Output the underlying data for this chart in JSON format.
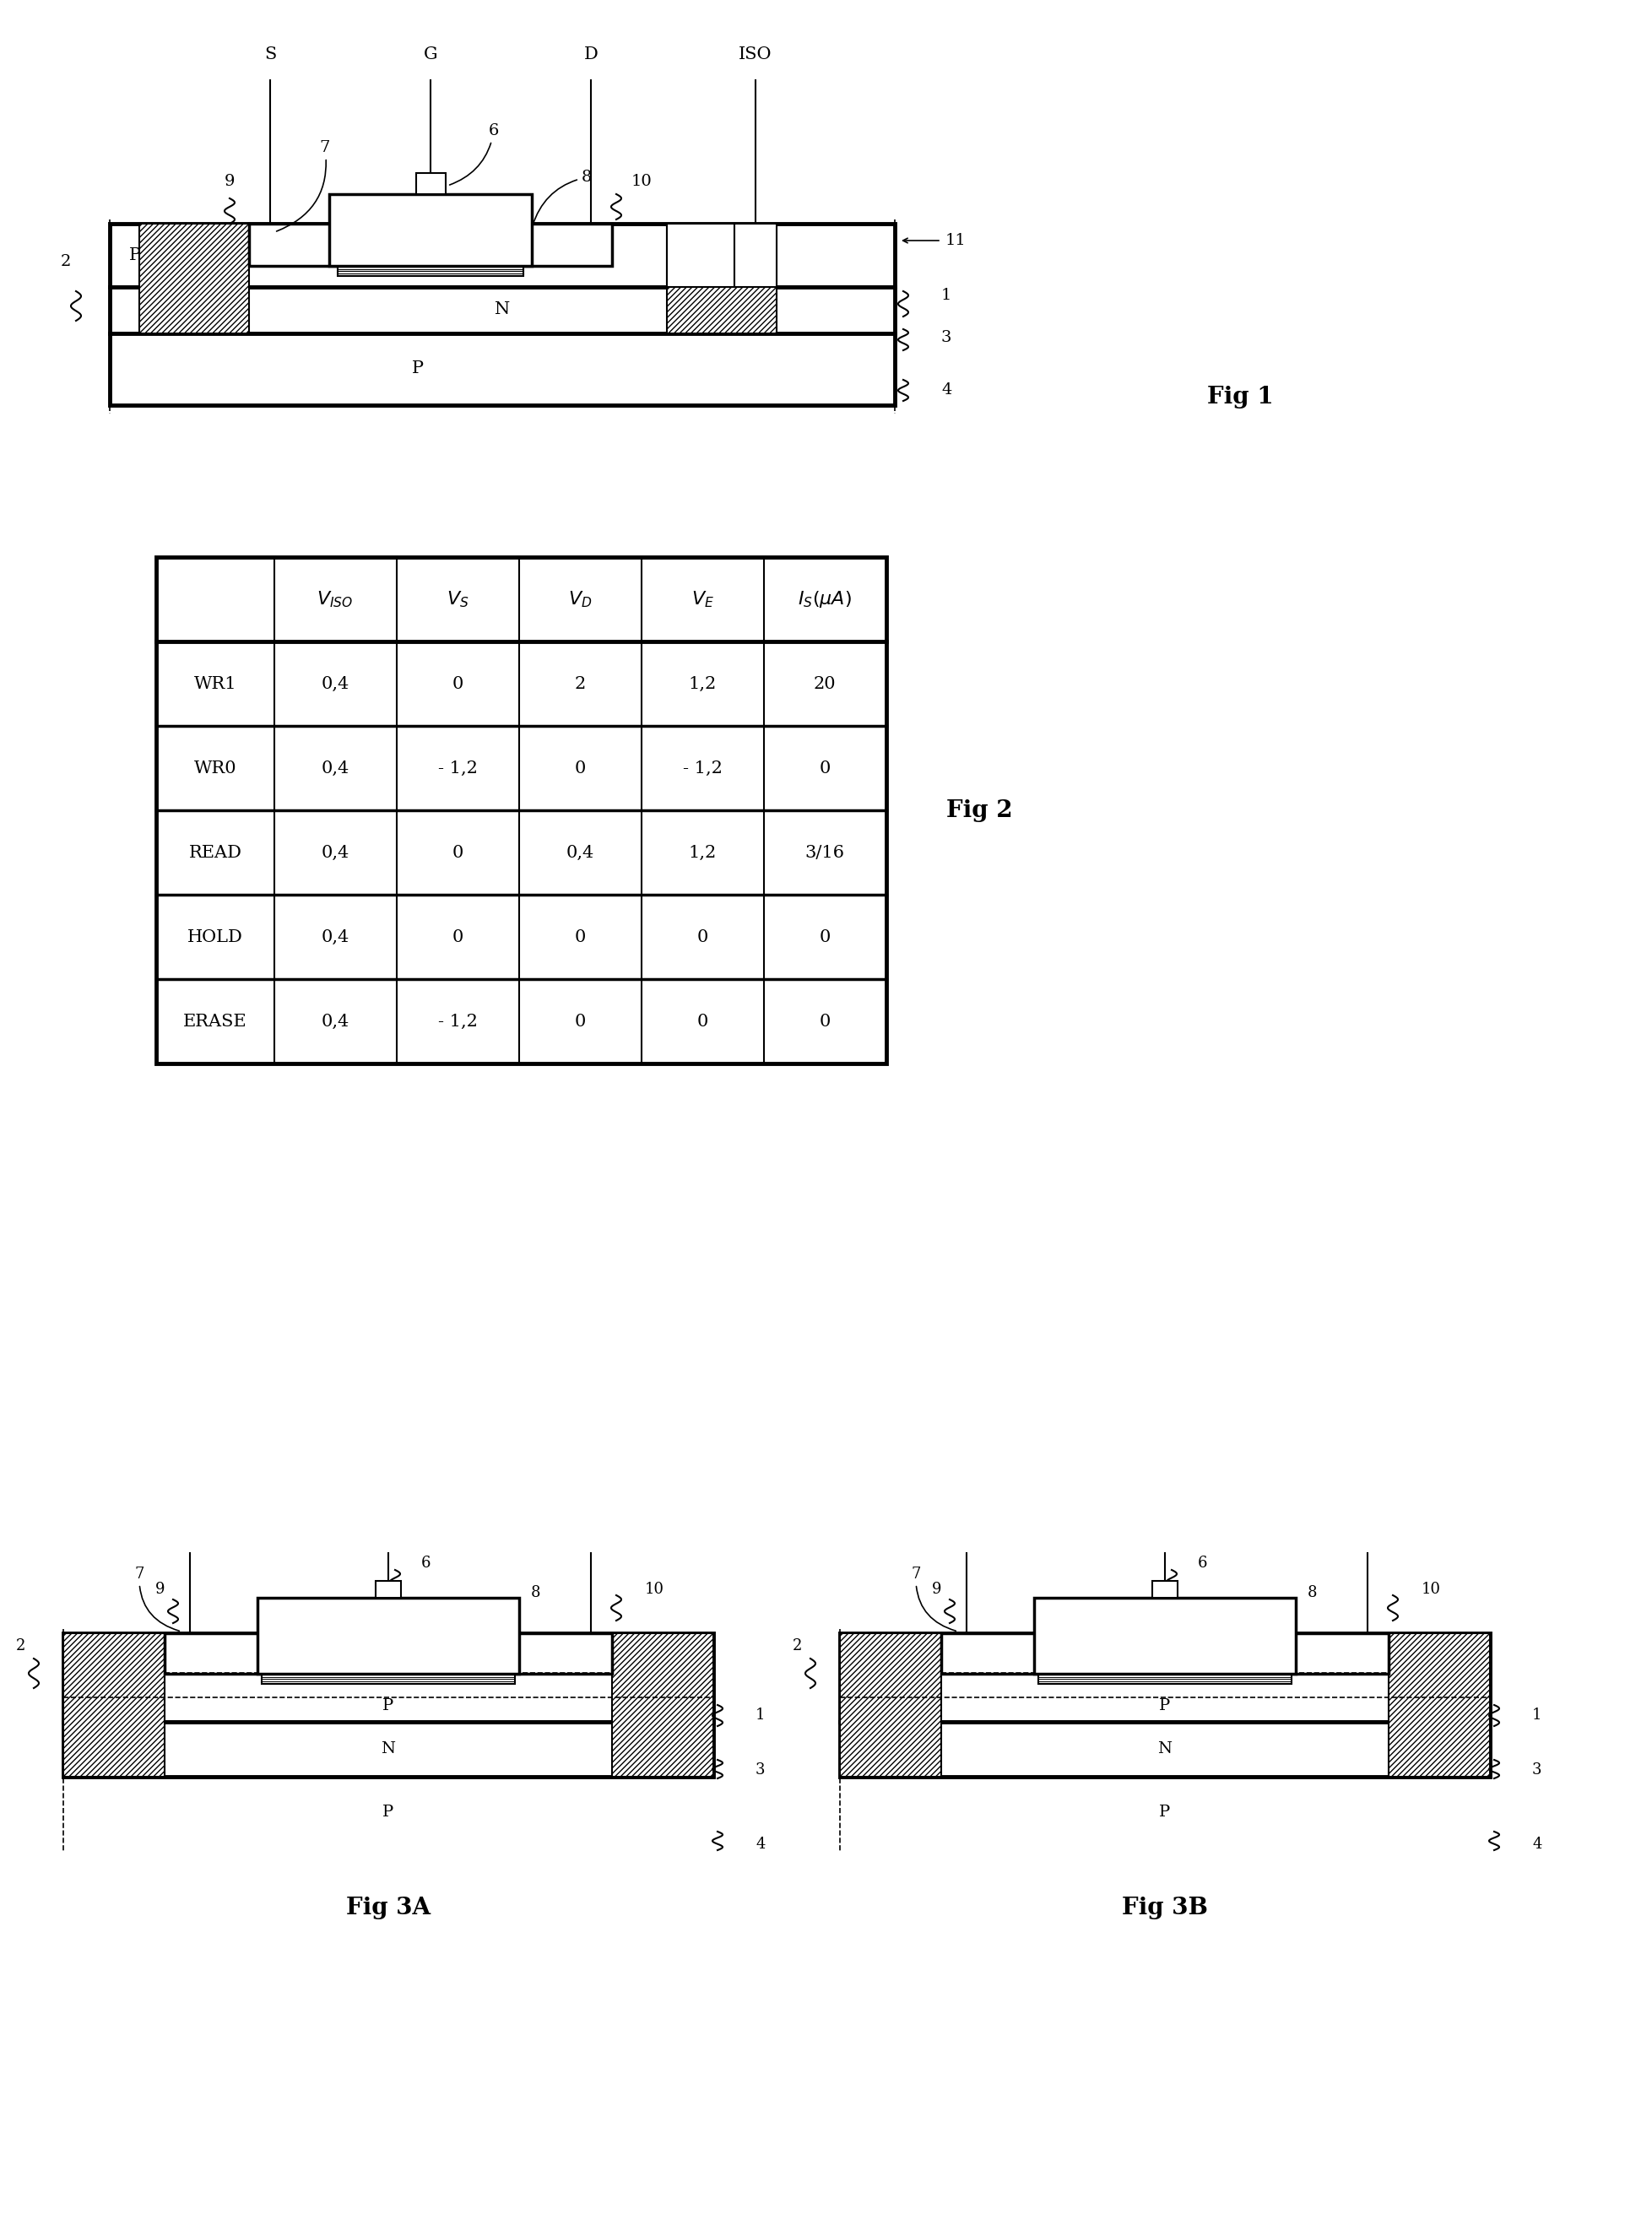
{
  "fig_width": 19.57,
  "fig_height": 26.29,
  "bg_color": "#ffffff",
  "line_color": "#000000",
  "table_rows": [
    [
      "WR1",
      "0,4",
      "0",
      "2",
      "1,2",
      "20"
    ],
    [
      "WR0",
      "0,4",
      "- 1,2",
      "0",
      "- 1,2",
      "0"
    ],
    [
      "READ",
      "0,4",
      "0",
      "0,4",
      "1,2",
      "3/16"
    ],
    [
      "HOLD",
      "0,4",
      "0",
      "0",
      "0",
      "0"
    ],
    [
      "ERASE",
      "0,4",
      "- 1,2",
      "0",
      "0",
      "0"
    ]
  ]
}
